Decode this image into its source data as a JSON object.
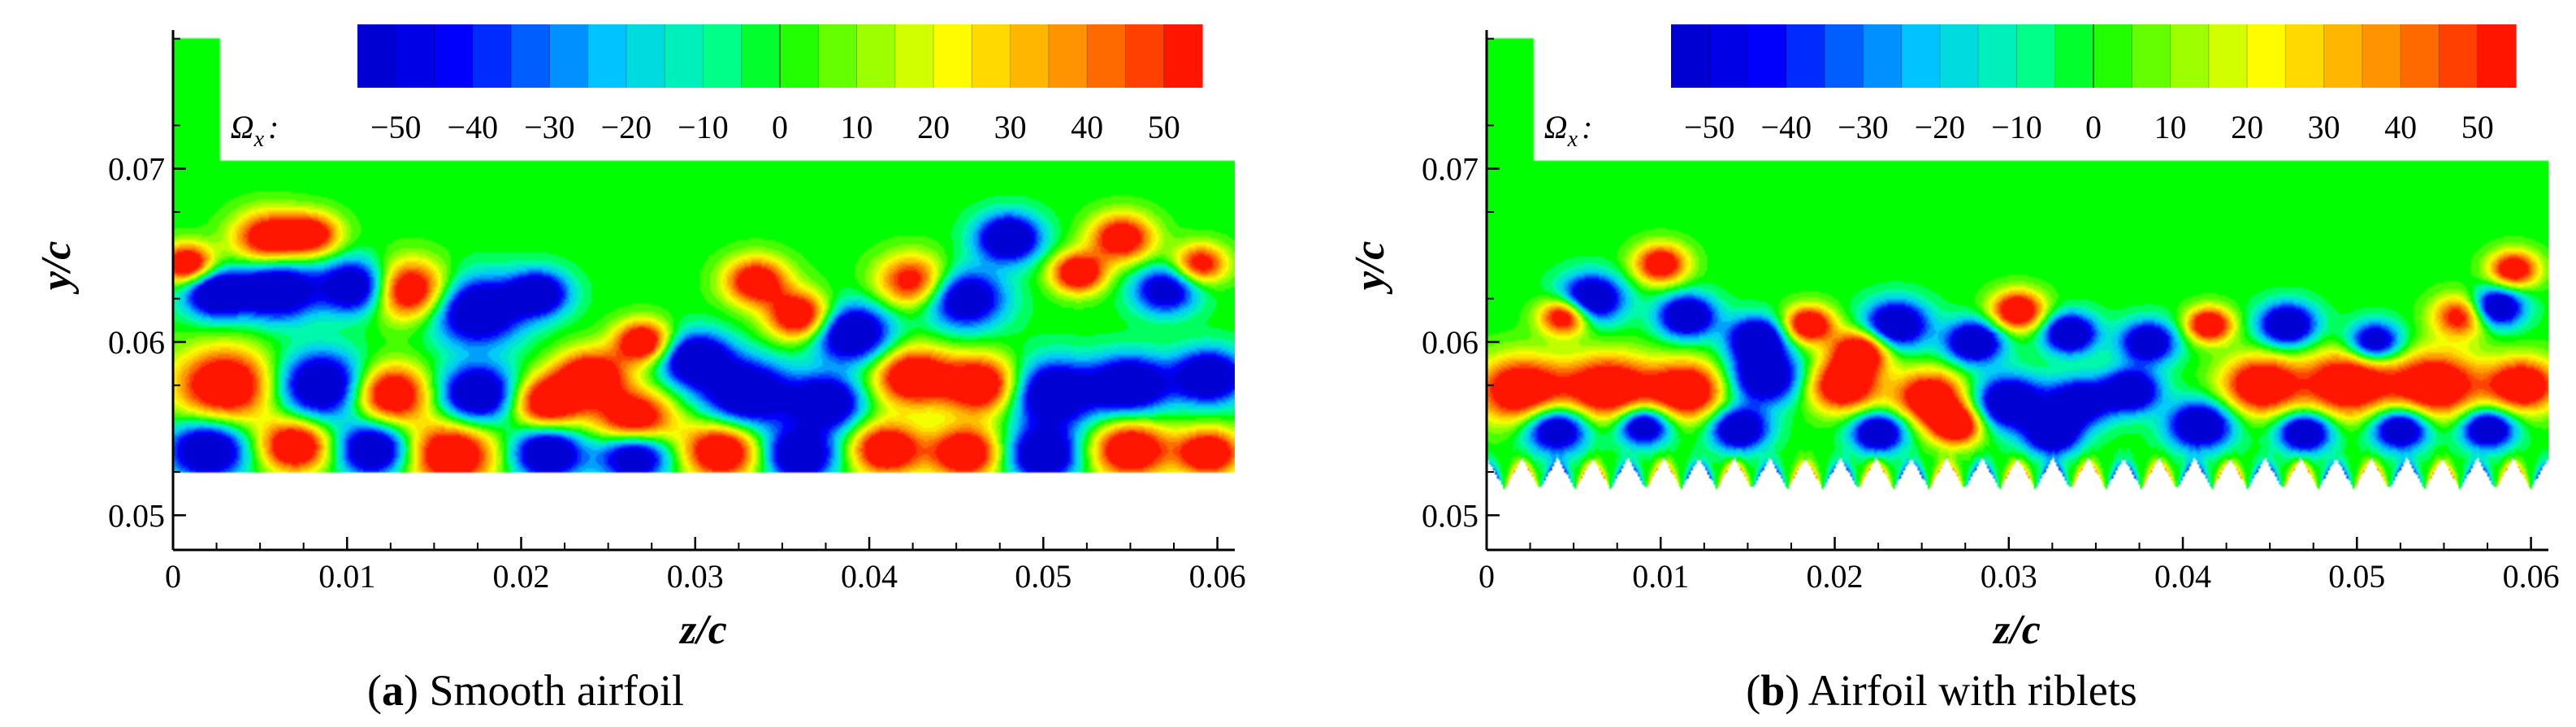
{
  "figure": {
    "captions": [
      {
        "letter": "a",
        "text": "Smooth airfoil"
      },
      {
        "letter": "b",
        "text": "Airfoil with riblets"
      }
    ]
  },
  "colors": {
    "negative_max": "#0000ff",
    "zero": "#00ff00",
    "positive_max": "#ff0000",
    "background": "#ffffff"
  },
  "chart_data": [
    {
      "type": "heatmap",
      "title": "(a) Smooth airfoil",
      "variable": "Ω",
      "variable_subscript": "x",
      "xlabel": "z/c",
      "ylabel": "y/c",
      "xlim": [
        0,
        0.061
      ],
      "ylim": [
        0.048,
        0.078
      ],
      "xticks": [
        "0",
        "0.01",
        "0.02",
        "0.03",
        "0.04",
        "0.05",
        "0.06"
      ],
      "xtick_values": [
        0,
        0.01,
        0.02,
        0.03,
        0.04,
        0.05,
        0.06
      ],
      "yticks": [
        "0.05",
        "0.06",
        "0.07"
      ],
      "ytick_values": [
        0.05,
        0.06,
        0.07
      ],
      "colorbar": {
        "min": -55,
        "max": 55,
        "ticks": [
          "−50",
          "−40",
          "−30",
          "−20",
          "−10",
          "0",
          "10",
          "20",
          "30",
          "40",
          "50"
        ],
        "tick_values": [
          -50,
          -40,
          -30,
          -20,
          -10,
          0,
          10,
          20,
          30,
          40,
          50
        ]
      },
      "domain": {
        "z_range": [
          0,
          0.061
        ],
        "y_range": [
          0.0525,
          0.0705
        ],
        "wall": "flat"
      },
      "structures": [
        {
          "z": 0.0008,
          "y": 0.0645,
          "w": 0.0015,
          "v": 50
        },
        {
          "z": 0.0025,
          "y": 0.0628,
          "w": 0.0018,
          "v": -50
        },
        {
          "z": 0.0055,
          "y": 0.066,
          "w": 0.002,
          "v": 45
        },
        {
          "z": 0.008,
          "y": 0.0662,
          "w": 0.0016,
          "v": 40
        },
        {
          "z": 0.006,
          "y": 0.063,
          "w": 0.0022,
          "v": -50
        },
        {
          "z": 0.0105,
          "y": 0.0632,
          "w": 0.002,
          "v": -50
        },
        {
          "z": 0.0135,
          "y": 0.063,
          "w": 0.0022,
          "v": 50
        },
        {
          "z": 0.0175,
          "y": 0.0618,
          "w": 0.0025,
          "v": -50
        },
        {
          "z": 0.021,
          "y": 0.0628,
          "w": 0.0017,
          "v": -45
        },
        {
          "z": 0.024,
          "y": 0.058,
          "w": 0.002,
          "v": 50
        },
        {
          "z": 0.027,
          "y": 0.06,
          "w": 0.0016,
          "v": 50
        },
        {
          "z": 0.03,
          "y": 0.059,
          "w": 0.002,
          "v": -50
        },
        {
          "z": 0.0335,
          "y": 0.0635,
          "w": 0.0018,
          "v": 45
        },
        {
          "z": 0.036,
          "y": 0.0615,
          "w": 0.0018,
          "v": 50
        },
        {
          "z": 0.039,
          "y": 0.0605,
          "w": 0.0022,
          "v": -50
        },
        {
          "z": 0.0425,
          "y": 0.0635,
          "w": 0.002,
          "v": 40
        },
        {
          "z": 0.0455,
          "y": 0.0625,
          "w": 0.0022,
          "v": -45
        },
        {
          "z": 0.048,
          "y": 0.066,
          "w": 0.0018,
          "v": -50
        },
        {
          "z": 0.052,
          "y": 0.064,
          "w": 0.0015,
          "v": 50
        },
        {
          "z": 0.0545,
          "y": 0.066,
          "w": 0.0018,
          "v": 45
        },
        {
          "z": 0.057,
          "y": 0.063,
          "w": 0.0018,
          "v": -40
        },
        {
          "z": 0.059,
          "y": 0.0645,
          "w": 0.0015,
          "v": 40
        },
        {
          "z": 0.003,
          "y": 0.0575,
          "w": 0.0028,
          "v": 50
        },
        {
          "z": 0.0085,
          "y": 0.0575,
          "w": 0.0025,
          "v": -50
        },
        {
          "z": 0.0125,
          "y": 0.057,
          "w": 0.0022,
          "v": 50
        },
        {
          "z": 0.0175,
          "y": 0.057,
          "w": 0.0022,
          "v": -50
        },
        {
          "z": 0.0215,
          "y": 0.0565,
          "w": 0.002,
          "v": 50
        },
        {
          "z": 0.0265,
          "y": 0.0555,
          "w": 0.0022,
          "v": 50
        },
        {
          "z": 0.033,
          "y": 0.057,
          "w": 0.0025,
          "v": -50
        },
        {
          "z": 0.0375,
          "y": 0.0565,
          "w": 0.002,
          "v": -50
        },
        {
          "z": 0.0425,
          "y": 0.058,
          "w": 0.0022,
          "v": 50
        },
        {
          "z": 0.0465,
          "y": 0.0575,
          "w": 0.0022,
          "v": 50
        },
        {
          "z": 0.0505,
          "y": 0.057,
          "w": 0.0025,
          "v": -50
        },
        {
          "z": 0.055,
          "y": 0.0575,
          "w": 0.0022,
          "v": -50
        },
        {
          "z": 0.0595,
          "y": 0.058,
          "w": 0.002,
          "v": -50
        },
        {
          "z": 0.002,
          "y": 0.0538,
          "w": 0.0022,
          "v": -50
        },
        {
          "z": 0.007,
          "y": 0.054,
          "w": 0.002,
          "v": 50
        },
        {
          "z": 0.0115,
          "y": 0.0538,
          "w": 0.002,
          "v": -50
        },
        {
          "z": 0.016,
          "y": 0.0535,
          "w": 0.0025,
          "v": 50
        },
        {
          "z": 0.0215,
          "y": 0.0536,
          "w": 0.002,
          "v": -50
        },
        {
          "z": 0.0265,
          "y": 0.0535,
          "w": 0.002,
          "v": -50
        },
        {
          "z": 0.0315,
          "y": 0.0537,
          "w": 0.0022,
          "v": 50
        },
        {
          "z": 0.036,
          "y": 0.0535,
          "w": 0.002,
          "v": -50
        },
        {
          "z": 0.041,
          "y": 0.0538,
          "w": 0.002,
          "v": 50
        },
        {
          "z": 0.0455,
          "y": 0.0536,
          "w": 0.002,
          "v": 50
        },
        {
          "z": 0.05,
          "y": 0.0535,
          "w": 0.002,
          "v": -50
        },
        {
          "z": 0.055,
          "y": 0.0538,
          "w": 0.0022,
          "v": 50
        },
        {
          "z": 0.0595,
          "y": 0.0536,
          "w": 0.0018,
          "v": 50
        }
      ]
    },
    {
      "type": "heatmap",
      "title": "(b) Airfoil with riblets",
      "variable": "Ω",
      "variable_subscript": "x",
      "xlabel": "z/c",
      "ylabel": "y/c",
      "xlim": [
        0,
        0.061
      ],
      "ylim": [
        0.048,
        0.078
      ],
      "xticks": [
        "0",
        "0.01",
        "0.02",
        "0.03",
        "0.04",
        "0.05",
        "0.06"
      ],
      "xtick_values": [
        0,
        0.01,
        0.02,
        0.03,
        0.04,
        0.05,
        0.06
      ],
      "yticks": [
        "0.05",
        "0.06",
        "0.07"
      ],
      "ytick_values": [
        0.05,
        0.06,
        0.07
      ],
      "colorbar": {
        "min": -55,
        "max": 55,
        "ticks": [
          "−50",
          "−40",
          "−30",
          "−20",
          "−10",
          "0",
          "10",
          "20",
          "30",
          "40",
          "50"
        ],
        "tick_values": [
          -50,
          -40,
          -30,
          -20,
          -10,
          0,
          10,
          20,
          30,
          40,
          50
        ]
      },
      "domain": {
        "z_range": [
          0,
          0.061
        ],
        "y_range": [
          0.0515,
          0.0705
        ],
        "wall": "riblets",
        "riblet_count": 30,
        "riblet_height": 0.0018
      },
      "structures": [
        {
          "z": 0.0045,
          "y": 0.0615,
          "w": 0.0014,
          "v": 50
        },
        {
          "z": 0.01,
          "y": 0.0645,
          "w": 0.0015,
          "v": 45
        },
        {
          "z": 0.006,
          "y": 0.0625,
          "w": 0.0018,
          "v": -50
        },
        {
          "z": 0.0115,
          "y": 0.0615,
          "w": 0.0016,
          "v": -50
        },
        {
          "z": 0.0155,
          "y": 0.0602,
          "w": 0.0016,
          "v": -50
        },
        {
          "z": 0.0185,
          "y": 0.061,
          "w": 0.0014,
          "v": 50
        },
        {
          "z": 0.0215,
          "y": 0.0595,
          "w": 0.0016,
          "v": 50
        },
        {
          "z": 0.0235,
          "y": 0.061,
          "w": 0.0018,
          "v": -50
        },
        {
          "z": 0.0305,
          "y": 0.0618,
          "w": 0.0015,
          "v": 50
        },
        {
          "z": 0.028,
          "y": 0.06,
          "w": 0.0016,
          "v": -50
        },
        {
          "z": 0.0335,
          "y": 0.0605,
          "w": 0.0015,
          "v": -50
        },
        {
          "z": 0.038,
          "y": 0.06,
          "w": 0.0016,
          "v": -45
        },
        {
          "z": 0.0415,
          "y": 0.061,
          "w": 0.0013,
          "v": 50
        },
        {
          "z": 0.046,
          "y": 0.061,
          "w": 0.0016,
          "v": -50
        },
        {
          "z": 0.051,
          "y": 0.06,
          "w": 0.0015,
          "v": -45
        },
        {
          "z": 0.056,
          "y": 0.0615,
          "w": 0.0016,
          "v": 40
        },
        {
          "z": 0.059,
          "y": 0.0642,
          "w": 0.0014,
          "v": 45
        },
        {
          "z": 0.058,
          "y": 0.062,
          "w": 0.0015,
          "v": -50
        },
        {
          "z": 0.002,
          "y": 0.0572,
          "w": 0.0025,
          "v": 50
        },
        {
          "z": 0.007,
          "y": 0.0573,
          "w": 0.0025,
          "v": 50
        },
        {
          "z": 0.0115,
          "y": 0.0572,
          "w": 0.0022,
          "v": 50
        },
        {
          "z": 0.016,
          "y": 0.058,
          "w": 0.002,
          "v": -50
        },
        {
          "z": 0.0205,
          "y": 0.0575,
          "w": 0.002,
          "v": 50
        },
        {
          "z": 0.0255,
          "y": 0.0568,
          "w": 0.002,
          "v": 50
        },
        {
          "z": 0.03,
          "y": 0.0565,
          "w": 0.002,
          "v": -50
        },
        {
          "z": 0.034,
          "y": 0.0565,
          "w": 0.0018,
          "v": -45
        },
        {
          "z": 0.037,
          "y": 0.0572,
          "w": 0.0016,
          "v": -50
        },
        {
          "z": 0.0445,
          "y": 0.0575,
          "w": 0.0022,
          "v": 50
        },
        {
          "z": 0.0495,
          "y": 0.0576,
          "w": 0.0025,
          "v": 50
        },
        {
          "z": 0.0545,
          "y": 0.0575,
          "w": 0.0025,
          "v": 50
        },
        {
          "z": 0.0595,
          "y": 0.0575,
          "w": 0.002,
          "v": 50
        },
        {
          "z": 0.004,
          "y": 0.055,
          "w": 0.0018,
          "v": -50
        },
        {
          "z": 0.009,
          "y": 0.0552,
          "w": 0.0015,
          "v": -50
        },
        {
          "z": 0.0145,
          "y": 0.055,
          "w": 0.0016,
          "v": -50
        },
        {
          "z": 0.0225,
          "y": 0.0548,
          "w": 0.0015,
          "v": -50
        },
        {
          "z": 0.027,
          "y": 0.0552,
          "w": 0.0015,
          "v": 50
        },
        {
          "z": 0.0325,
          "y": 0.0547,
          "w": 0.0015,
          "v": -50
        },
        {
          "z": 0.041,
          "y": 0.0552,
          "w": 0.0018,
          "v": -50
        },
        {
          "z": 0.047,
          "y": 0.0548,
          "w": 0.0015,
          "v": -50
        },
        {
          "z": 0.0525,
          "y": 0.055,
          "w": 0.0016,
          "v": -50
        },
        {
          "z": 0.0575,
          "y": 0.055,
          "w": 0.0015,
          "v": -50
        }
      ]
    }
  ]
}
